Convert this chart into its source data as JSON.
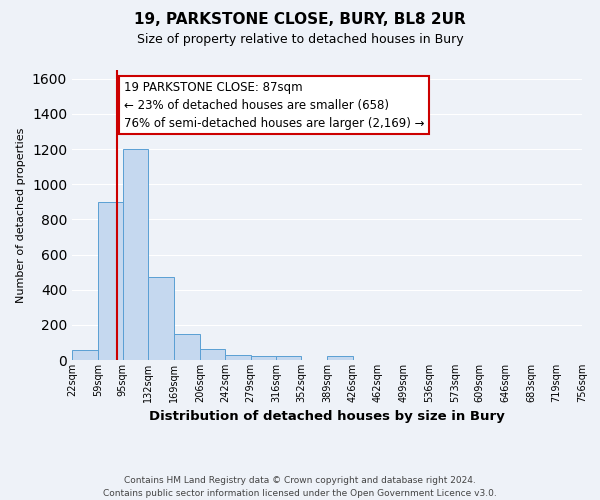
{
  "title": "19, PARKSTONE CLOSE, BURY, BL8 2UR",
  "subtitle": "Size of property relative to detached houses in Bury",
  "xlabel": "Distribution of detached houses by size in Bury",
  "ylabel": "Number of detached properties",
  "bar_edges": [
    22,
    59,
    95,
    132,
    169,
    206,
    242,
    279,
    316,
    352,
    389,
    426,
    462,
    499,
    536,
    573,
    609,
    646,
    683,
    719,
    756
  ],
  "bar_heights": [
    55,
    900,
    1200,
    470,
    150,
    60,
    30,
    20,
    20,
    0,
    20,
    0,
    0,
    0,
    0,
    0,
    0,
    0,
    0,
    0
  ],
  "bar_color": "#c5d8ef",
  "bar_edgecolor": "#5a9fd4",
  "property_line_x": 87,
  "property_line_color": "#cc0000",
  "annotation_line1": "19 PARKSTONE CLOSE: 87sqm",
  "annotation_line2": "← 23% of detached houses are smaller (658)",
  "annotation_line3": "76% of semi-detached houses are larger (2,169) →",
  "annotation_box_edgecolor": "#cc0000",
  "annotation_box_facecolor": "#ffffff",
  "ylim": [
    0,
    1650
  ],
  "xlim": [
    22,
    756
  ],
  "tick_labels": [
    "22sqm",
    "59sqm",
    "95sqm",
    "132sqm",
    "169sqm",
    "206sqm",
    "242sqm",
    "279sqm",
    "316sqm",
    "352sqm",
    "389sqm",
    "426sqm",
    "462sqm",
    "499sqm",
    "536sqm",
    "573sqm",
    "609sqm",
    "646sqm",
    "683sqm",
    "719sqm",
    "756sqm"
  ],
  "tick_positions": [
    22,
    59,
    95,
    132,
    169,
    206,
    242,
    279,
    316,
    352,
    389,
    426,
    462,
    499,
    536,
    573,
    609,
    646,
    683,
    719,
    756
  ],
  "footer_line1": "Contains HM Land Registry data © Crown copyright and database right 2024.",
  "footer_line2": "Contains public sector information licensed under the Open Government Licence v3.0.",
  "background_color": "#eef2f8",
  "grid_color": "#ffffff",
  "title_fontsize": 11,
  "subtitle_fontsize": 9,
  "ylabel_fontsize": 8,
  "xlabel_fontsize": 9.5,
  "tick_fontsize": 7,
  "annotation_fontsize": 8.5,
  "footer_fontsize": 6.5
}
